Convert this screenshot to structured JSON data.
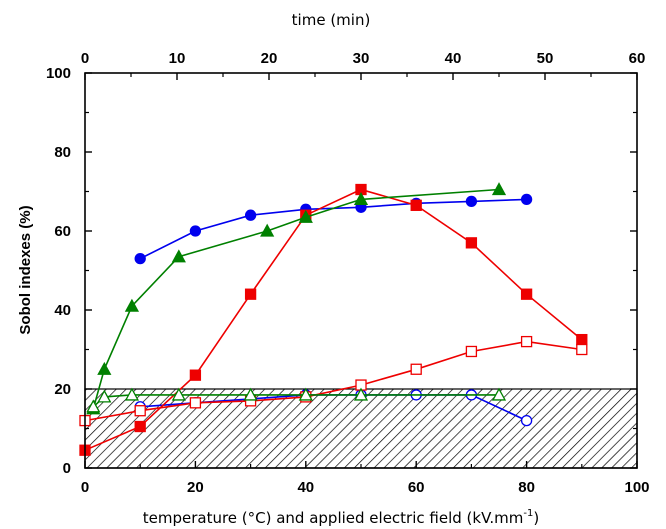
{
  "chart_data": {
    "type": "line",
    "xlabel_main": "temperature (°C) and applied electric field (kV.mm",
    "xlabel_sup": "-1",
    "xlabel_close": ")",
    "xlabel_top": "time (min)",
    "ylabel": "Sobol indexes (%)",
    "xlim": [
      0,
      100
    ],
    "ylim": [
      0,
      100
    ],
    "xlim_top": [
      0,
      60
    ],
    "x_ticks": [
      0,
      20,
      40,
      60,
      80,
      100
    ],
    "x_ticks_top": [
      0,
      10,
      20,
      30,
      40,
      50,
      60
    ],
    "y_ticks": [
      0,
      20,
      40,
      60,
      80,
      100
    ],
    "grid": false,
    "threshold_band": {
      "y_from": 0,
      "y_to": 20,
      "style": "hatched"
    },
    "series": [
      {
        "color": "#0000ee",
        "marker": "circle",
        "filled": true,
        "x": [
          10,
          20,
          30,
          40,
          50,
          60,
          70,
          80
        ],
        "y": [
          53,
          60,
          64,
          65.5,
          66,
          67,
          67.5,
          68
        ]
      },
      {
        "color": "#0000ee",
        "marker": "circle",
        "filled": false,
        "x": [
          10,
          20,
          30,
          40,
          50,
          60,
          70,
          80
        ],
        "y": [
          15.5,
          16.5,
          17.5,
          18.5,
          18.5,
          18.5,
          18.5,
          12
        ]
      },
      {
        "color": "#ee0000",
        "marker": "square",
        "filled": true,
        "x": [
          0,
          10,
          20,
          30,
          40,
          50,
          60,
          70,
          80,
          90
        ],
        "y": [
          4.5,
          10.5,
          23.5,
          44,
          64,
          70.5,
          66.5,
          57,
          44,
          32.5
        ]
      },
      {
        "color": "#ee0000",
        "marker": "square",
        "filled": false,
        "x": [
          0,
          10,
          20,
          30,
          40,
          50,
          60,
          70,
          80,
          90
        ],
        "y": [
          12,
          14.5,
          16.5,
          17,
          18,
          21,
          25,
          29.5,
          32,
          30
        ]
      },
      {
        "color": "#008000",
        "marker": "triangle",
        "filled": true,
        "x": [
          1.5,
          3.5,
          8.5,
          17,
          33,
          40,
          50,
          75
        ],
        "y": [
          15,
          25,
          41,
          53.5,
          60,
          63.5,
          68,
          70.5
        ]
      },
      {
        "color": "#008000",
        "marker": "triangle",
        "filled": false,
        "x": [
          1.5,
          3.5,
          8.5,
          17,
          30,
          40,
          50,
          75
        ],
        "y": [
          15.5,
          18,
          18.5,
          18.5,
          18.5,
          18.5,
          18.5,
          18.5
        ]
      }
    ]
  }
}
